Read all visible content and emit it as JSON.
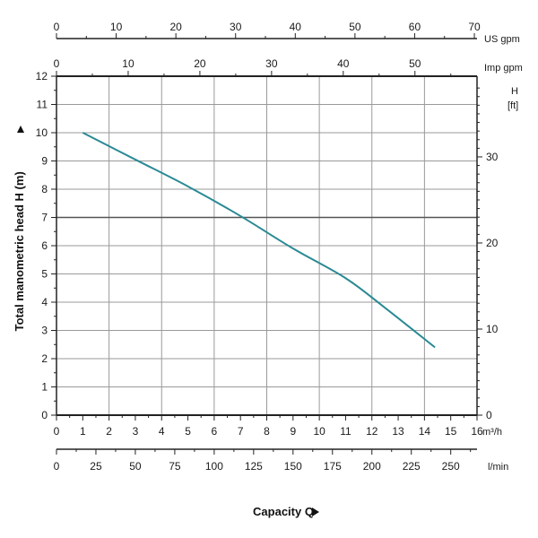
{
  "chart_data": {
    "type": "line",
    "title": "",
    "xlabel": "Capacity Q",
    "ylabel": "Total manometric head H (m)",
    "xlim": [
      0,
      16
    ],
    "ylim": [
      0,
      12
    ],
    "grid": true,
    "axes": {
      "x_primary": {
        "unit": "m³/h",
        "ticks": [
          0,
          1,
          2,
          3,
          4,
          5,
          6,
          7,
          8,
          9,
          10,
          11,
          12,
          13,
          14,
          15,
          16
        ]
      },
      "x_lmin": {
        "unit": "l/min",
        "ticks": [
          0,
          25,
          50,
          75,
          100,
          125,
          150,
          175,
          200,
          225,
          250
        ]
      },
      "x_usgpm": {
        "unit": "US gpm",
        "ticks": [
          0,
          10,
          20,
          30,
          40,
          50,
          60,
          70
        ]
      },
      "x_impgpm": {
        "unit": "Imp gpm",
        "ticks": [
          0,
          10,
          20,
          30,
          40,
          50
        ]
      },
      "y_primary": {
        "unit": "m",
        "ticks": [
          0,
          1,
          2,
          3,
          4,
          5,
          6,
          7,
          8,
          9,
          10,
          11,
          12
        ]
      },
      "y_ft": {
        "unit_line1": "H",
        "unit_line2": "[ft]",
        "ticks": [
          0,
          10,
          20,
          30
        ]
      }
    },
    "series": [
      {
        "color": "#2a8a94",
        "x": [
          1.0,
          3.0,
          5.0,
          7.0,
          9.0,
          11.0,
          12.5,
          14.4
        ],
        "y": [
          10.0,
          9.05,
          8.1,
          7.05,
          5.9,
          4.85,
          3.8,
          2.4
        ]
      }
    ]
  }
}
